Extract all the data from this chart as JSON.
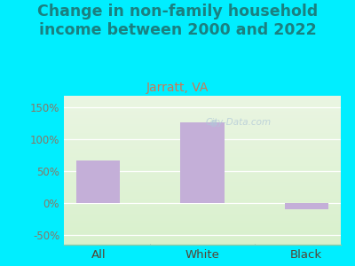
{
  "title": "Change in non-family household\nincome between 2000 and 2022",
  "subtitle": "Jarratt, VA",
  "categories": [
    "All",
    "White",
    "Black"
  ],
  "values": [
    67,
    127,
    -10
  ],
  "bar_color": "#c4afd8",
  "background_outer": "#00eeff",
  "grad_top": "#eaf5e2",
  "grad_bottom": "#d8f0cc",
  "title_color": "#1a8080",
  "subtitle_color": "#cc7755",
  "tick_label_color": "#887766",
  "xtick_label_color": "#554433",
  "ylim": [
    -65,
    168
  ],
  "yticks": [
    -50,
    0,
    50,
    100,
    150
  ],
  "ytick_labels": [
    "-50%",
    "0%",
    "50%",
    "100%",
    "150%"
  ],
  "watermark": "City-Data.com",
  "title_fontsize": 12.5,
  "subtitle_fontsize": 10
}
